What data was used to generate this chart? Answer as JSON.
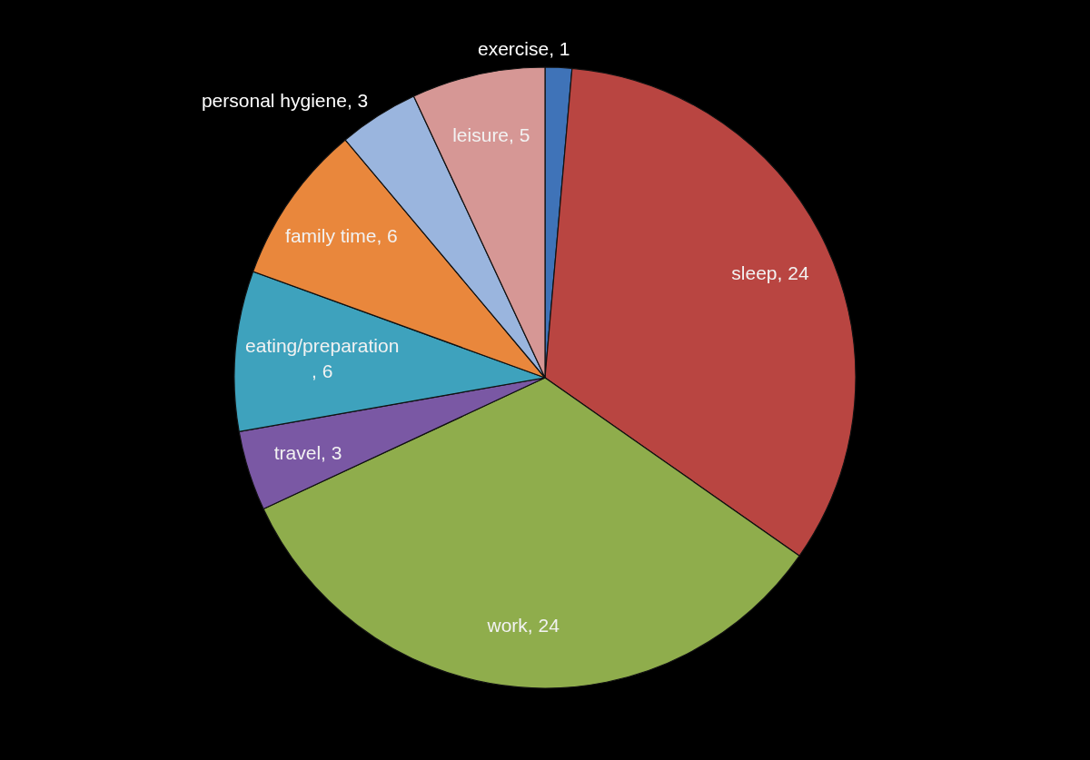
{
  "chart_data": {
    "type": "pie",
    "categories": [
      "exercise",
      "sleep",
      "work",
      "travel",
      "eating/preparation",
      "family time",
      "personal hygiene",
      "leisure"
    ],
    "values": [
      1,
      24,
      24,
      3,
      6,
      6,
      3,
      5
    ],
    "value_labels": [
      ", 1",
      ", 24",
      ", 24",
      ", 3",
      ", 6",
      ", 6",
      ", 3",
      ", 5"
    ],
    "colors": [
      "#3f73b8",
      "#b94541",
      "#8fad4c",
      "#7a58a4",
      "#3ea2bd",
      "#e9873c",
      "#9ab5de",
      "#d69795"
    ]
  }
}
